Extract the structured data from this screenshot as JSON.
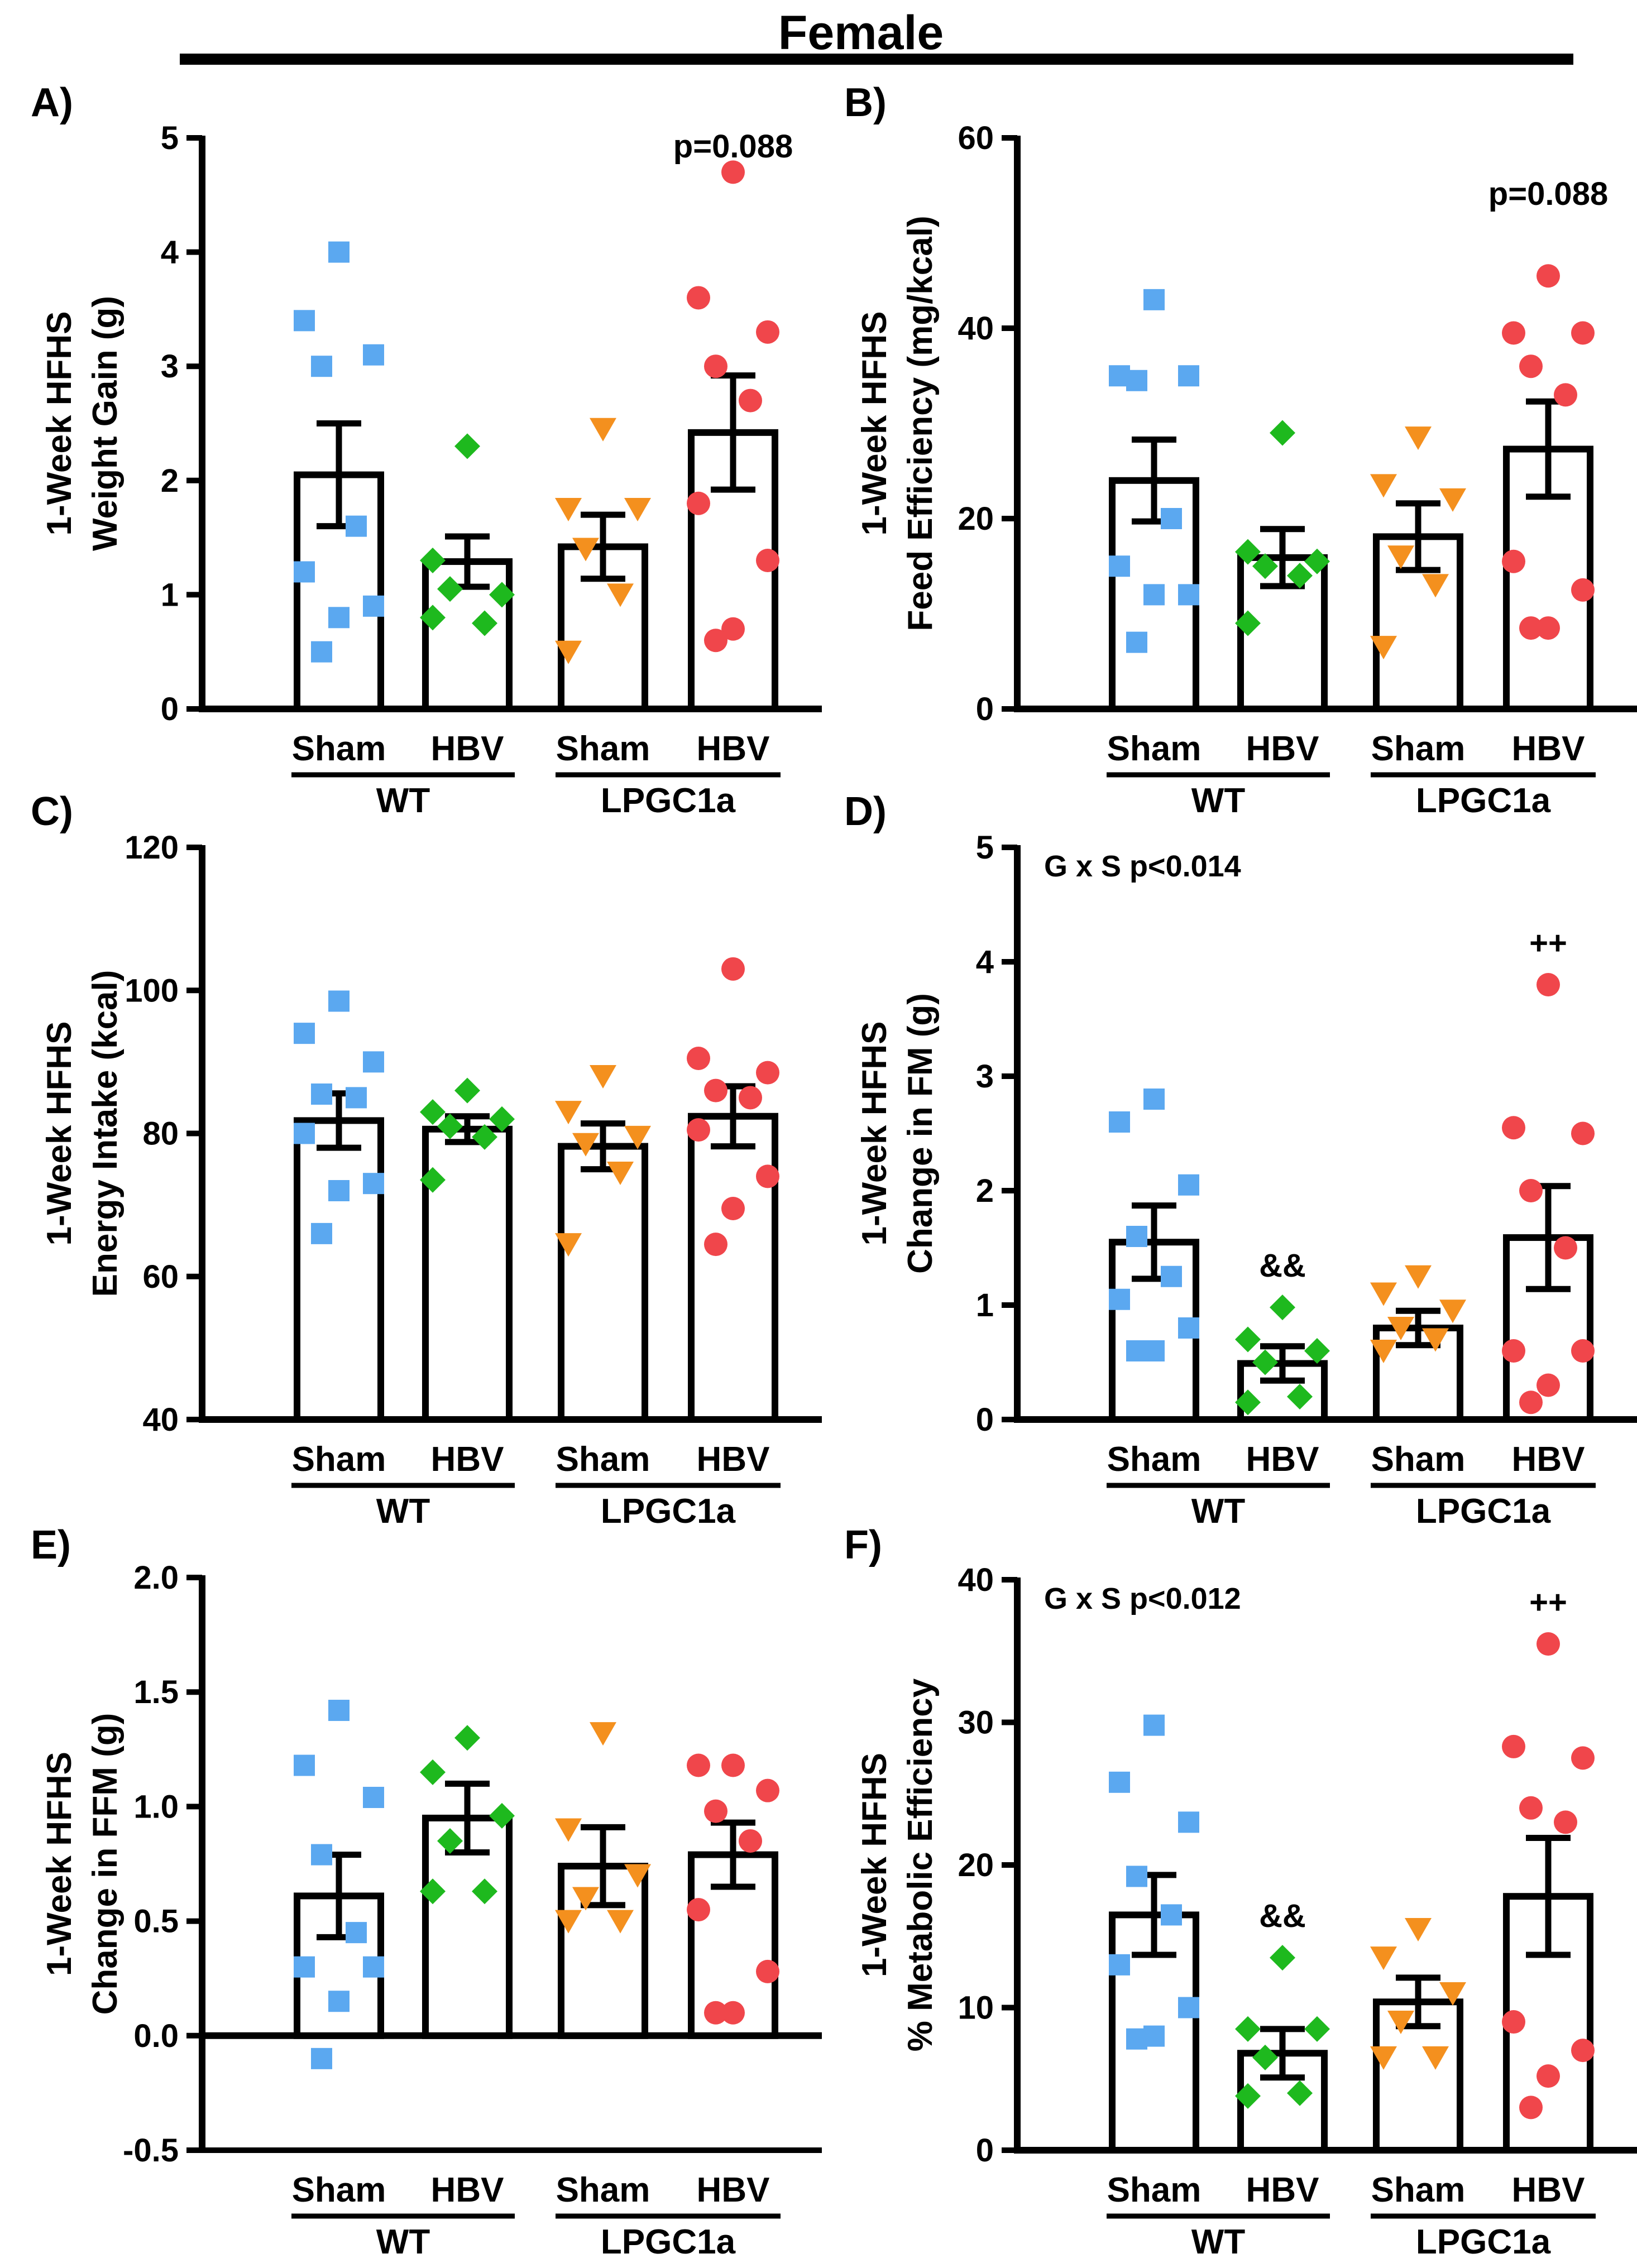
{
  "figure_title": "Female",
  "group_labels": {
    "conditions": [
      "Sham",
      "HBV",
      "Sham",
      "HBV"
    ],
    "genotypes": [
      "WT",
      "LPGC1a"
    ]
  },
  "colors": {
    "wt_sham": "#5ba8f0",
    "wt_hbv": "#1eb91e",
    "lpgc1a_sham": "#f4901e",
    "lpgc1a_hbv": "#f0464b",
    "bar_stroke": "#000000",
    "background": "#ffffff"
  },
  "markers": [
    "square",
    "diamond",
    "triangle-down",
    "circle"
  ],
  "chart_data": [
    {
      "panel": "A)",
      "type": "bar",
      "ylabel_line1": "1-Week HFHS",
      "ylabel_line2": "Weight Gain  (g)",
      "ylim": [
        0,
        5
      ],
      "yticks": [
        "0",
        "1",
        "2",
        "3",
        "4",
        "5"
      ],
      "categories": [
        "WT Sham",
        "WT HBV",
        "LPGC1a Sham",
        "LPGC1a HBV"
      ],
      "means": [
        2.05,
        1.29,
        1.42,
        2.42
      ],
      "sem": [
        0.45,
        0.22,
        0.28,
        0.5
      ],
      "points": [
        [
          4.0,
          3.4,
          3.1,
          3.0,
          1.6,
          1.2,
          0.9,
          0.8,
          0.5
        ],
        [
          2.3,
          1.3,
          1.0,
          1.05,
          0.75,
          0.8
        ],
        [
          2.45,
          1.75,
          1.75,
          1.4,
          1.0,
          0.5
        ],
        [
          4.7,
          3.6,
          3.3,
          3.0,
          2.7,
          1.8,
          1.3,
          0.7,
          0.6
        ]
      ],
      "annotations": [
        {
          "text": "p=0.088",
          "group": 3
        }
      ]
    },
    {
      "panel": "B)",
      "type": "bar",
      "ylabel_line1": "1-Week HFHS",
      "ylabel_line2": "Feed Efficiency (mg/kcal)",
      "ylim": [
        0,
        60
      ],
      "yticks": [
        "0",
        "20",
        "40",
        "60"
      ],
      "categories": [
        "WT Sham",
        "WT HBV",
        "LPGC1a Sham",
        "LPGC1a HBV"
      ],
      "means": [
        24.0,
        15.9,
        18.1,
        27.3
      ],
      "sem": [
        4.3,
        3.0,
        3.5,
        5.0
      ],
      "points": [
        [
          43.0,
          35.0,
          35.0,
          34.5,
          20.0,
          15.0,
          12.0,
          12.0,
          7.0
        ],
        [
          29.0,
          16.5,
          15.5,
          15.0,
          14.0,
          9.0
        ],
        [
          28.5,
          23.5,
          22.0,
          16.0,
          13.0,
          6.5
        ],
        [
          45.5,
          39.5,
          39.5,
          36.0,
          33.0,
          15.5,
          12.5,
          8.5,
          8.5
        ]
      ],
      "annotations": [
        {
          "text": "p=0.088",
          "group": 3
        }
      ]
    },
    {
      "panel": "C)",
      "type": "bar",
      "ylabel_line1": "1-Week HFHS",
      "ylabel_line2": "Energy Intake (kcal)",
      "ylim": [
        40,
        120
      ],
      "yticks": [
        "40",
        "60",
        "80",
        "100",
        "120"
      ],
      "categories": [
        "WT Sham",
        "WT HBV",
        "LPGC1a Sham",
        "LPGC1a HBV"
      ],
      "means": [
        81.8,
        80.6,
        78.2,
        82.4
      ],
      "sem": [
        3.8,
        1.8,
        3.2,
        4.2
      ],
      "points": [
        [
          98.5,
          94.0,
          90.0,
          85.5,
          85.0,
          80.0,
          73.0,
          72.0,
          66.0
        ],
        [
          86.0,
          83.0,
          82.0,
          81.0,
          79.5,
          73.5
        ],
        [
          88.0,
          83.0,
          79.5,
          78.5,
          74.5,
          64.5
        ],
        [
          103.0,
          90.5,
          88.5,
          86.0,
          85.0,
          80.5,
          74.0,
          69.5,
          64.5
        ]
      ],
      "annotations": []
    },
    {
      "panel": "D)",
      "type": "bar",
      "ylabel_line1": "1-Week HFHS",
      "ylabel_line2": "Change in FM (g)",
      "ylim": [
        0,
        5
      ],
      "yticks": [
        "0",
        "1",
        "2",
        "3",
        "4",
        "5"
      ],
      "categories": [
        "WT Sham",
        "WT HBV",
        "LPGC1a Sham",
        "LPGC1a HBV"
      ],
      "means": [
        1.55,
        0.49,
        0.8,
        1.59
      ],
      "sem": [
        0.32,
        0.15,
        0.15,
        0.45
      ],
      "points": [
        [
          2.8,
          2.6,
          2.05,
          1.6,
          1.25,
          1.05,
          0.8,
          0.6,
          0.6
        ],
        [
          0.98,
          0.7,
          0.6,
          0.5,
          0.2,
          0.15
        ],
        [
          1.25,
          1.1,
          0.95,
          0.8,
          0.7,
          0.6
        ],
        [
          3.8,
          2.55,
          2.5,
          2.0,
          1.5,
          0.6,
          0.6,
          0.3,
          0.15
        ]
      ],
      "annotations": [
        {
          "text": "G x S p<0.014",
          "group": -1
        },
        {
          "text": "&&",
          "group": 1
        },
        {
          "text": "++",
          "group": 3
        }
      ]
    },
    {
      "panel": "E)",
      "type": "bar",
      "ylabel_line1": "1-Week HFHS",
      "ylabel_line2": "Change in FFM (g)",
      "ylim": [
        -0.5,
        2.0
      ],
      "yticks": [
        "-0.5",
        "0.0",
        "0.5",
        "1.0",
        "1.5",
        "2.0"
      ],
      "categories": [
        "WT Sham",
        "WT HBV",
        "LPGC1a Sham",
        "LPGC1a HBV"
      ],
      "means": [
        0.61,
        0.95,
        0.74,
        0.79
      ],
      "sem": [
        0.18,
        0.15,
        0.17,
        0.14
      ],
      "points": [
        [
          1.42,
          1.18,
          1.04,
          0.79,
          0.45,
          0.3,
          0.3,
          0.15,
          -0.1
        ],
        [
          1.3,
          1.15,
          0.96,
          0.85,
          0.63,
          0.63
        ],
        [
          1.32,
          0.9,
          0.7,
          0.6,
          0.5,
          0.5
        ],
        [
          1.18,
          1.18,
          1.07,
          0.98,
          0.85,
          0.55,
          0.28,
          0.1,
          0.1
        ]
      ],
      "annotations": []
    },
    {
      "panel": "F)",
      "type": "bar",
      "ylabel_line1": "1-Week HFHS",
      "ylabel_line2": "% Metabolic Efficiency",
      "ylim": [
        0,
        40
      ],
      "yticks": [
        "0",
        "10",
        "20",
        "30",
        "40"
      ],
      "categories": [
        "WT Sham",
        "WT HBV",
        "LPGC1a Sham",
        "LPGC1a HBV"
      ],
      "means": [
        16.5,
        6.8,
        10.4,
        17.8
      ],
      "sem": [
        2.8,
        1.7,
        1.7,
        4.1
      ],
      "points": [
        [
          29.8,
          25.8,
          23.0,
          19.2,
          16.5,
          13.0,
          10.0,
          8.0,
          7.8
        ],
        [
          13.5,
          8.5,
          8.5,
          6.5,
          4.0,
          3.8
        ],
        [
          15.5,
          13.5,
          11.0,
          9.0,
          6.5,
          6.5
        ],
        [
          35.5,
          28.3,
          27.5,
          24.0,
          23.0,
          9.0,
          7.0,
          5.2,
          3.0
        ]
      ],
      "annotations": [
        {
          "text": "G x S p<0.012",
          "group": -1
        },
        {
          "text": "&&",
          "group": 1
        },
        {
          "text": "++",
          "group": 3
        }
      ]
    }
  ]
}
